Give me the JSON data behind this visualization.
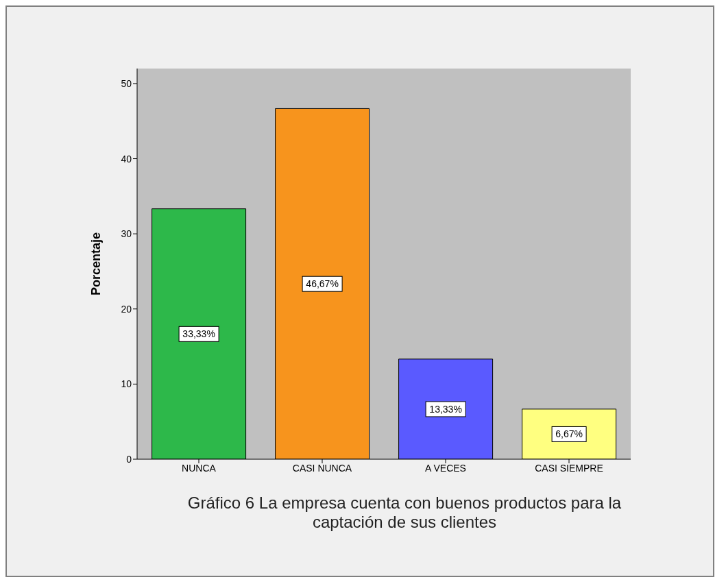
{
  "chart_data": {
    "type": "bar",
    "xlabel": "Gráfico 6 La empresa cuenta con buenos productos para la captación de sus clientes",
    "ylabel": "Porcentaje",
    "categories": [
      "NUNCA",
      "CASI NUNCA",
      "A VECES",
      "CASI SIEMPRE"
    ],
    "values": [
      33.33,
      46.67,
      13.33,
      6.67
    ],
    "colors": [
      "#2db84a",
      "#f7941d",
      "#5a5aff",
      "#ffff80"
    ],
    "value_labels": [
      "33,33%",
      "46,67%",
      "13,33%",
      "6,67%"
    ],
    "ylim": [
      0,
      52
    ],
    "yticks": [
      0,
      10,
      20,
      30,
      40,
      50
    ]
  }
}
